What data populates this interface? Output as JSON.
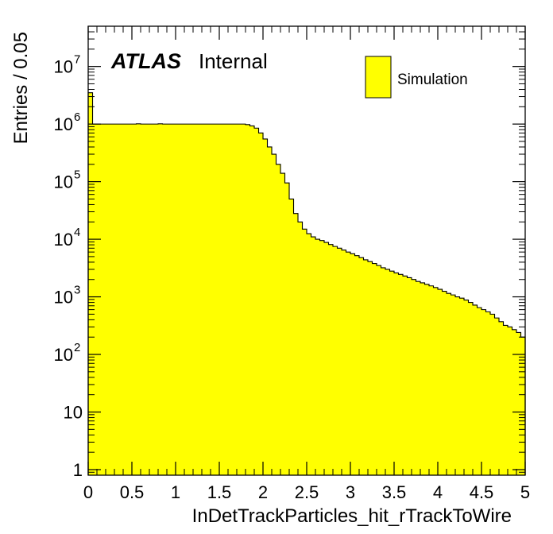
{
  "chart_data": {
    "type": "bar",
    "style": "filled-step-histogram",
    "xlabel": "InDetTrackParticles_hit_rTrackToWire",
    "ylabel": "Entries / 0.05",
    "xlim": [
      0,
      5
    ],
    "ylim": [
      0.8,
      50000000
    ],
    "y_scale": "log",
    "grid": false,
    "experiment_label": "ATLAS",
    "status_label": "Internal",
    "legend_position": "top-right",
    "legend": [
      {
        "label": "Simulation",
        "fill": "#ffff00",
        "edge": "#000000"
      }
    ],
    "x_ticks": [
      {
        "value": 0,
        "label": "0"
      },
      {
        "value": 0.5,
        "label": "0.5"
      },
      {
        "value": 1,
        "label": "1"
      },
      {
        "value": 1.5,
        "label": "1.5"
      },
      {
        "value": 2,
        "label": "2"
      },
      {
        "value": 2.5,
        "label": "2.5"
      },
      {
        "value": 3,
        "label": "3"
      },
      {
        "value": 3.5,
        "label": "3.5"
      },
      {
        "value": 4,
        "label": "4"
      },
      {
        "value": 4.5,
        "label": "4.5"
      },
      {
        "value": 5,
        "label": "5"
      }
    ],
    "y_ticks": [
      {
        "value": 1,
        "base": "1",
        "exp": ""
      },
      {
        "value": 10,
        "base": "10",
        "exp": ""
      },
      {
        "value": 100,
        "base": "10",
        "exp": "2"
      },
      {
        "value": 1000,
        "base": "10",
        "exp": "3"
      },
      {
        "value": 10000,
        "base": "10",
        "exp": "4"
      },
      {
        "value": 100000,
        "base": "10",
        "exp": "5"
      },
      {
        "value": 1000000,
        "base": "10",
        "exp": "6"
      },
      {
        "value": 10000000,
        "base": "10",
        "exp": "7"
      }
    ],
    "series": [
      {
        "name": "Simulation",
        "color": "#ffff00",
        "bin_edges_start": 0,
        "bin_width": 0.05,
        "values": [
          3500000,
          1000000,
          1000000,
          1000000,
          1000000,
          1000000,
          1000000,
          1000000,
          1000000,
          1000000,
          1000000,
          1010000,
          1000000,
          1000000,
          1000000,
          1000000,
          1010000,
          1000000,
          1000000,
          1000000,
          1000000,
          1000000,
          1000000,
          1000000,
          1000000,
          1000000,
          1000000,
          1000000,
          1000000,
          1000000,
          1000000,
          1000000,
          1000000,
          1000000,
          1000000,
          1000000,
          980000,
          930000,
          850000,
          700000,
          550000,
          400000,
          300000,
          200000,
          140000,
          95000,
          50000,
          28000,
          20000,
          15000,
          12500,
          11000,
          10000,
          9500,
          8800,
          8100,
          7500,
          7000,
          6500,
          6000,
          5600,
          5200,
          4800,
          4400,
          4100,
          3800,
          3500,
          3200,
          3000,
          2800,
          2600,
          2450,
          2300,
          2150,
          2000,
          1850,
          1750,
          1650,
          1550,
          1450,
          1350,
          1250,
          1150,
          1080,
          1000,
          950,
          880,
          800,
          720,
          650,
          600,
          550,
          500,
          430,
          370,
          320,
          300,
          270,
          240,
          200
        ]
      }
    ]
  }
}
